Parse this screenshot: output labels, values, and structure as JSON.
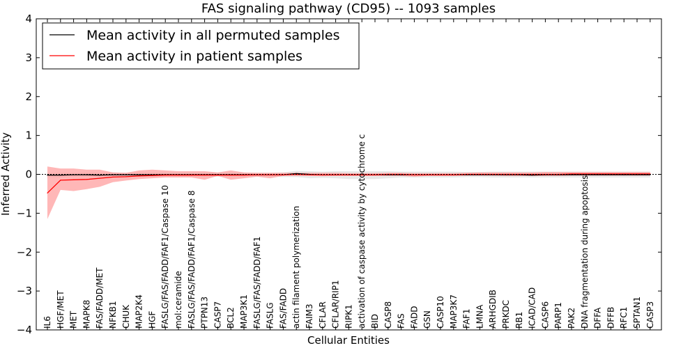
{
  "chart_data": {
    "type": "line",
    "title": "FAS signaling pathway (CD95) -- 1093 samples",
    "xlabel": "Cellular Entities",
    "ylabel": "Inferred Activity",
    "ylim": [
      -4,
      4
    ],
    "yticks": [
      -4,
      -3,
      -2,
      -1,
      0,
      1,
      2,
      3,
      4
    ],
    "ytick_labels": [
      "−4",
      "−3",
      "−2",
      "−1",
      "0",
      "1",
      "2",
      "3",
      "4"
    ],
    "grid": false,
    "legend_position": "top-left",
    "categories": [
      "IL6",
      "HGF/MET",
      "MET",
      "MAPK8",
      "FAS/FADD/MET",
      "NFKB1",
      "CHUK",
      "MAP2K4",
      "HGF",
      "FASLG/FAS/FADD/FAF1/Caspase 10",
      "mol:ceramide",
      "FASLG/FAS/FADD/FAF1/Caspase 8",
      "PTPN13",
      "CASP7",
      "BCL2",
      "MAP3K1",
      "FASLG/FAS/FADD/FAF1",
      "FASLG",
      "FAS/FADD",
      "actin filament polymerization",
      "FAIM3",
      "CFLAR",
      "CFLAR/RIP1",
      "RIPK1",
      "activation of caspase activity by cytochrome c",
      "BID",
      "CASP8",
      "FAS",
      "FADD",
      "GSN",
      "CASP10",
      "MAP3K7",
      "FAF1",
      "LMNA",
      "ARHGDIB",
      "PRKDC",
      "RB1",
      "ICAD/CAD",
      "CASP6",
      "PARP1",
      "PAK2",
      "DNA fragmentation during apoptosis",
      "DFFA",
      "DFFB",
      "RFC1",
      "SPTAN1",
      "CASP3"
    ],
    "series": [
      {
        "name": "Mean activity in all permuted samples",
        "color": "#000000",
        "values": [
          -0.02,
          -0.02,
          -0.01,
          -0.01,
          -0.02,
          -0.01,
          -0.01,
          -0.01,
          -0.01,
          -0.01,
          -0.01,
          -0.01,
          -0.01,
          -0.01,
          -0.01,
          -0.01,
          -0.01,
          -0.01,
          -0.01,
          0.02,
          0.0,
          -0.01,
          -0.01,
          -0.01,
          -0.01,
          -0.01,
          -0.01,
          -0.01,
          -0.01,
          -0.01,
          -0.01,
          -0.01,
          -0.01,
          -0.01,
          -0.01,
          -0.01,
          -0.01,
          -0.02,
          -0.01,
          -0.01,
          -0.01,
          -0.01,
          -0.01,
          -0.01,
          -0.01,
          -0.01,
          -0.01
        ],
        "lower": [
          -0.07,
          -0.08,
          -0.06,
          -0.06,
          -0.08,
          -0.07,
          -0.06,
          -0.06,
          -0.06,
          -0.06,
          -0.06,
          -0.06,
          -0.06,
          -0.06,
          -0.06,
          -0.06,
          -0.06,
          -0.06,
          -0.07,
          -0.07,
          -0.1,
          -0.09,
          -0.1,
          -0.12,
          -0.12,
          -0.12,
          -0.1,
          -0.08,
          -0.08,
          -0.08,
          -0.08,
          -0.08,
          -0.07,
          -0.07,
          -0.08,
          -0.08,
          -0.08,
          -0.08,
          -0.08,
          -0.08,
          -0.08,
          -0.08,
          -0.08,
          -0.08,
          -0.08,
          -0.08,
          -0.08
        ],
        "upper": [
          0.03,
          0.04,
          0.04,
          0.04,
          0.04,
          0.05,
          0.04,
          0.04,
          0.04,
          0.04,
          0.04,
          0.04,
          0.04,
          0.04,
          0.04,
          0.04,
          0.04,
          0.04,
          0.05,
          0.09,
          0.08,
          0.07,
          0.08,
          0.08,
          0.08,
          0.08,
          0.08,
          0.07,
          0.07,
          0.07,
          0.07,
          0.07,
          0.06,
          0.06,
          0.07,
          0.07,
          0.07,
          0.07,
          0.07,
          0.07,
          0.07,
          0.07,
          0.07,
          0.07,
          0.07,
          0.07,
          0.07
        ]
      },
      {
        "name": "Mean activity in patient samples",
        "color": "#ff0000",
        "fill": "#ff9999",
        "values": [
          -0.48,
          -0.15,
          -0.14,
          -0.13,
          -0.1,
          -0.07,
          -0.06,
          -0.04,
          -0.03,
          -0.02,
          -0.02,
          -0.02,
          -0.02,
          -0.02,
          -0.02,
          -0.02,
          -0.01,
          -0.01,
          -0.01,
          0.0,
          -0.01,
          -0.01,
          -0.01,
          -0.01,
          -0.01,
          -0.01,
          0.0,
          0.0,
          -0.01,
          -0.01,
          -0.01,
          -0.01,
          0.0,
          0.0,
          0.0,
          0.0,
          0.0,
          0.0,
          0.0,
          0.0,
          0.01,
          0.01,
          0.01,
          0.01,
          0.01,
          0.01,
          0.01
        ],
        "lower": [
          -1.15,
          -0.4,
          -0.43,
          -0.38,
          -0.32,
          -0.2,
          -0.16,
          -0.12,
          -0.1,
          -0.08,
          -0.08,
          -0.08,
          -0.14,
          -0.04,
          -0.14,
          -0.1,
          -0.06,
          -0.1,
          -0.04,
          -0.04,
          -0.04,
          -0.05,
          -0.04,
          -0.04,
          -0.04,
          -0.04,
          -0.04,
          -0.04,
          -0.06,
          -0.04,
          -0.04,
          -0.04,
          -0.03,
          -0.03,
          -0.03,
          -0.04,
          -0.04,
          -0.04,
          -0.04,
          -0.04,
          -0.03,
          -0.03,
          -0.03,
          -0.03,
          -0.03,
          -0.03,
          -0.03
        ],
        "upper": [
          0.2,
          0.15,
          0.15,
          0.12,
          0.12,
          0.05,
          0.04,
          0.1,
          0.12,
          0.1,
          0.08,
          0.08,
          0.08,
          0.05,
          0.1,
          0.05,
          0.04,
          0.04,
          0.04,
          0.04,
          0.04,
          0.04,
          0.04,
          0.03,
          0.03,
          0.03,
          0.04,
          0.04,
          0.03,
          0.03,
          0.03,
          0.03,
          0.04,
          0.05,
          0.05,
          0.05,
          0.05,
          0.05,
          0.06,
          0.06,
          0.06,
          0.06,
          0.06,
          0.06,
          0.06,
          0.06,
          0.06
        ]
      }
    ]
  }
}
